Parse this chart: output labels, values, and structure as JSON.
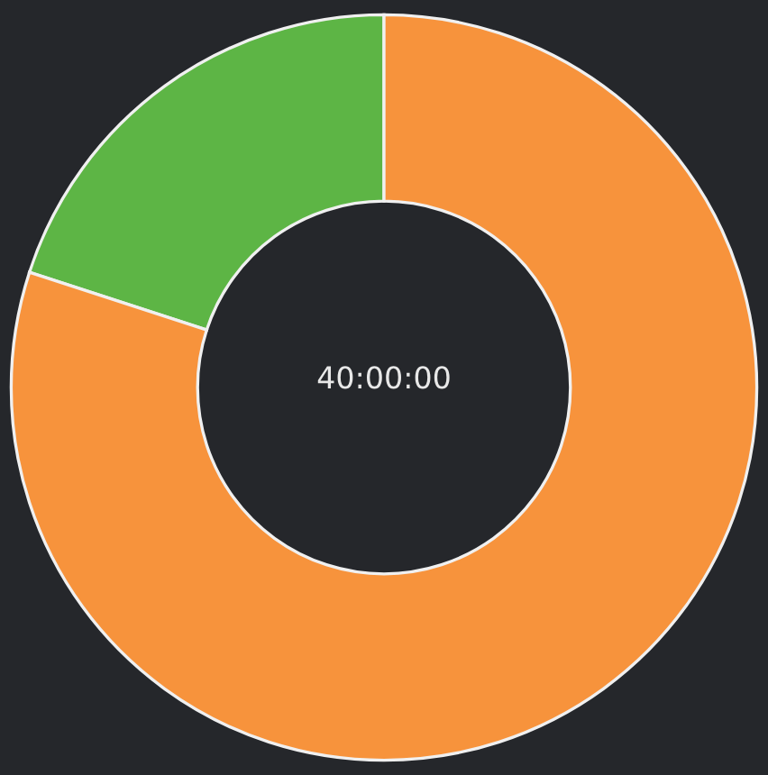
{
  "chart_data": {
    "type": "donut",
    "categories": [
      null,
      null
    ],
    "values": [
      20,
      80
    ],
    "colors": [
      "#5db545",
      "#f7933c"
    ],
    "annotations": [
      "40:00:00"
    ]
  }
}
